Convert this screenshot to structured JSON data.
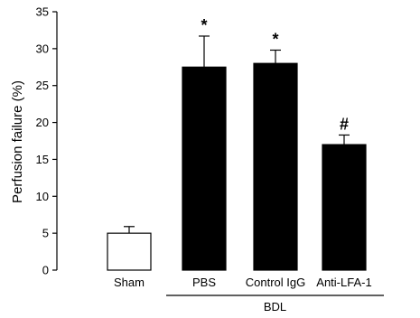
{
  "chart_data": {
    "type": "bar",
    "title": "",
    "xlabel": "",
    "ylabel": "Perfusion failure (%)",
    "ylim": [
      0,
      35
    ],
    "yticks": [
      0,
      5,
      10,
      15,
      20,
      25,
      30,
      35
    ],
    "categories": [
      "Sham",
      "PBS",
      "Control IgG",
      "Anti-LFA-1"
    ],
    "values": [
      5.0,
      27.5,
      28.0,
      17.0
    ],
    "errors": [
      0.9,
      4.2,
      1.8,
      1.3
    ],
    "bar_colors": [
      "#ffffff",
      "#000000",
      "#000000",
      "#000000"
    ],
    "significance": [
      "",
      "*",
      "*",
      "#"
    ],
    "group": {
      "label": "BDL",
      "categories": [
        "PBS",
        "Control IgG",
        "Anti-LFA-1"
      ]
    },
    "grid": false,
    "legend": "none"
  }
}
